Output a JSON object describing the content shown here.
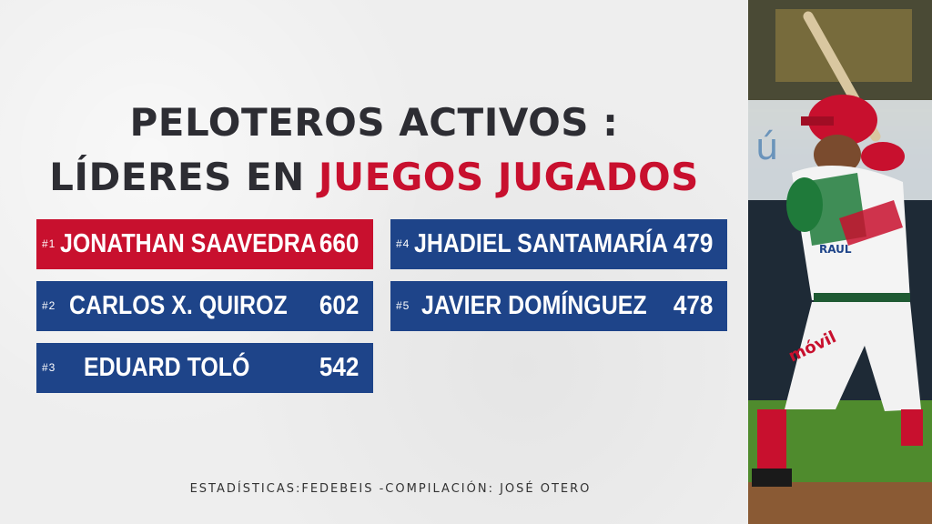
{
  "title": {
    "line1": "PELOTEROS ACTIVOS :",
    "line2_prefix": "LÍDERES EN ",
    "line2_highlight": "JUEGOS JUGADOS"
  },
  "leaders": [
    {
      "rank": "#1",
      "name": "JONATHAN SAAVEDRA",
      "games": "660"
    },
    {
      "rank": "#2",
      "name": "CARLOS X. QUIROZ",
      "games": "602"
    },
    {
      "rank": "#3",
      "name": "EDUARD TOLÓ",
      "games": "542"
    },
    {
      "rank": "#4",
      "name": "JHADIEL SANTAMARÍA",
      "games": "479"
    },
    {
      "rank": "#5",
      "name": "JAVIER DOMÍNGUEZ",
      "games": "478"
    }
  ],
  "footer": "ESTADÍSTICAS:FEDEBEIS -COMPILACIÓN: JOSÉ OTERO",
  "colors": {
    "accent_red": "#c8102e",
    "navy": "#1e4489",
    "dark_text": "#2d2d33"
  },
  "photo_jersey_texts": [
    "móvil",
    "RAUL"
  ]
}
